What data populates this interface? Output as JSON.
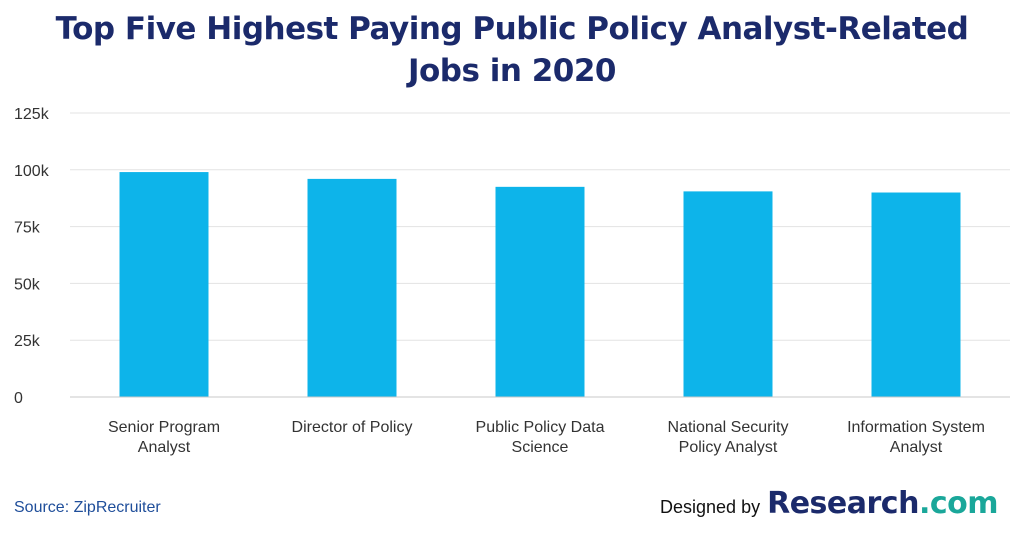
{
  "title_lines": [
    "Top Five Highest Paying Public Policy Analyst-Related",
    "Jobs in 2020"
  ],
  "source": "Source: ZipRecruiter",
  "credit": {
    "prefix": "Designed by",
    "brand_main": "Research",
    "brand_suffix": ".com"
  },
  "colors": {
    "bar": "#0db4ea",
    "grid": "#e3e3e3",
    "axis": "#c8c8c8",
    "title": "#1b2a6b",
    "brand_accent": "#1aa79a"
  },
  "chart_data": {
    "type": "bar",
    "categories": [
      [
        "Senior Program",
        "Analyst"
      ],
      [
        "Director of Policy"
      ],
      [
        "Public Policy Data",
        "Science"
      ],
      [
        "National Security",
        "Policy Analyst"
      ],
      [
        "Information System",
        "Analyst"
      ]
    ],
    "values": [
      99000,
      96000,
      92500,
      90500,
      90000
    ],
    "yticks": [
      0,
      25000,
      50000,
      75000,
      100000,
      125000
    ],
    "ytick_labels": [
      "0",
      "25k",
      "50k",
      "75k",
      "100k",
      "125k"
    ],
    "ylim": [
      0,
      125000
    ],
    "grid": true,
    "legend": "none"
  }
}
